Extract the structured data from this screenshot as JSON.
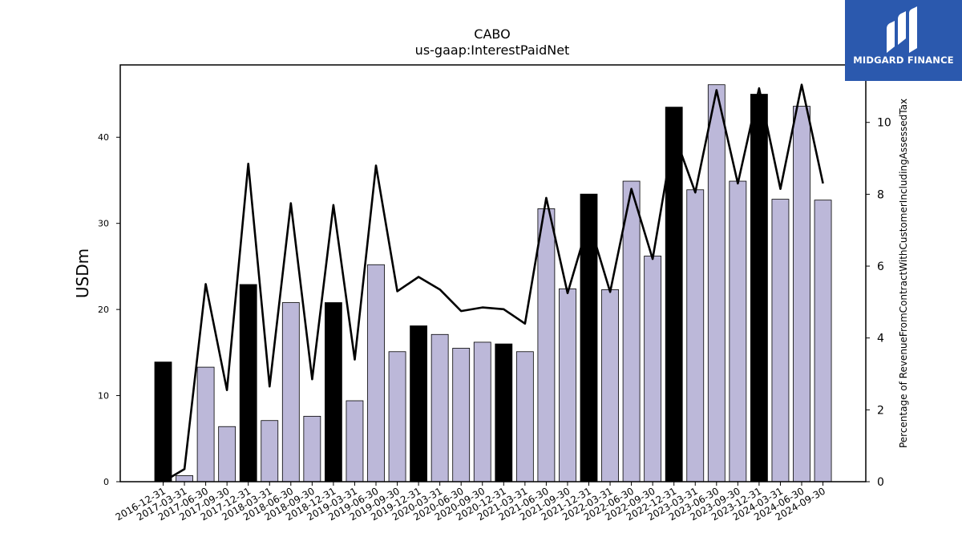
{
  "chart_data": {
    "type": "bar",
    "title": "CABO",
    "subtitle": "us-gaap:InterestPaidNet",
    "ylabel": "USDm",
    "y2label": "Percentage of RevenueFromContractWithCustomerIncludingAssessedTax",
    "ylim": [
      0,
      48.4
    ],
    "y2lim": [
      0,
      11.6
    ],
    "yticks": [
      0,
      10,
      20,
      30,
      40
    ],
    "y2ticks": [
      0,
      2,
      4,
      6,
      8,
      10
    ],
    "categories": [
      "2016-12-31",
      "2017-03-31",
      "2017-06-30",
      "2017-09-30",
      "2017-12-31",
      "2018-03-31",
      "2018-06-30",
      "2018-09-30",
      "2018-12-31",
      "2019-03-31",
      "2019-06-30",
      "2019-09-30",
      "2019-12-31",
      "2020-03-31",
      "2020-06-30",
      "2020-09-30",
      "2020-12-31",
      "2021-03-31",
      "2021-06-30",
      "2021-09-30",
      "2021-12-31",
      "2022-03-31",
      "2022-06-30",
      "2022-09-30",
      "2022-12-31",
      "2023-03-31",
      "2023-06-30",
      "2023-09-30",
      "2023-12-31",
      "2024-03-31",
      "2024-06-30",
      "2024-09-30"
    ],
    "series": [
      {
        "kind": "bar",
        "values": [
          13.9,
          0.7,
          13.3,
          6.4,
          22.9,
          7.1,
          20.8,
          7.6,
          20.8,
          9.4,
          25.2,
          15.1,
          18.1,
          17.1,
          15.5,
          16.2,
          16.0,
          15.1,
          31.7,
          22.4,
          33.4,
          22.3,
          34.9,
          26.2,
          43.5,
          33.9,
          46.1,
          34.9,
          45.0,
          32.8,
          43.6,
          32.7
        ],
        "highlight": [
          true,
          false,
          false,
          false,
          true,
          false,
          false,
          false,
          true,
          false,
          false,
          false,
          true,
          false,
          false,
          false,
          true,
          false,
          false,
          false,
          true,
          false,
          false,
          false,
          true,
          false,
          false,
          false,
          true,
          false,
          false,
          false
        ]
      },
      {
        "kind": "line",
        "axis": "right",
        "values": [
          0.0,
          0.35,
          5.5,
          2.55,
          8.85,
          2.65,
          7.75,
          2.85,
          7.7,
          3.4,
          8.8,
          5.3,
          5.7,
          5.35,
          4.75,
          4.85,
          4.8,
          4.4,
          7.9,
          5.25,
          7.25,
          5.28,
          8.15,
          6.2,
          9.7,
          8.05,
          10.9,
          8.3,
          10.95,
          8.15,
          11.05,
          8.3
        ]
      }
    ],
    "colors": {
      "bar": "#bcb8d9",
      "bar_highlight": "#000000",
      "line": "#000000"
    },
    "grid": false,
    "legend": "none"
  },
  "logo": {
    "text": "MIDGARD FINANCE",
    "background": "#2b59ae"
  }
}
